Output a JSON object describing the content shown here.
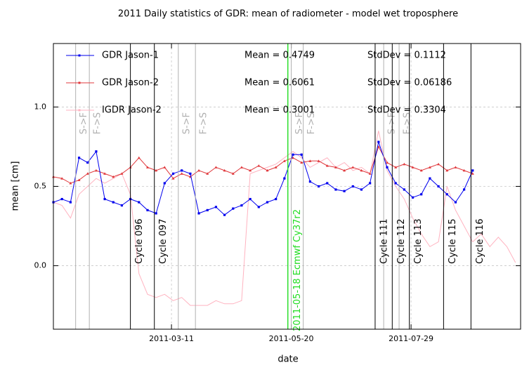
{
  "chart_data": {
    "type": "line",
    "title": "2011 Daily statistics of GDR: mean of radiometer - model wet troposphere",
    "xlabel": "date",
    "ylabel": "mean [cm]",
    "x": [
      "2011-01-01",
      "2011-01-06",
      "2011-01-11",
      "2011-01-16",
      "2011-01-21",
      "2011-01-26",
      "2011-01-31",
      "2011-02-05",
      "2011-02-10",
      "2011-02-15",
      "2011-02-20",
      "2011-02-25",
      "2011-03-02",
      "2011-03-07",
      "2011-03-12",
      "2011-03-17",
      "2011-03-22",
      "2011-03-27",
      "2011-04-01",
      "2011-04-06",
      "2011-04-11",
      "2011-04-16",
      "2011-04-21",
      "2011-04-26",
      "2011-05-01",
      "2011-05-06",
      "2011-05-11",
      "2011-05-16",
      "2011-05-21",
      "2011-05-26",
      "2011-05-31",
      "2011-06-05",
      "2011-06-10",
      "2011-06-15",
      "2011-06-20",
      "2011-06-25",
      "2011-06-30",
      "2011-07-05",
      "2011-07-10",
      "2011-07-15",
      "2011-07-20",
      "2011-07-25",
      "2011-07-30",
      "2011-08-04",
      "2011-08-09",
      "2011-08-14",
      "2011-08-19",
      "2011-08-24",
      "2011-08-29",
      "2011-09-03",
      "2011-09-08",
      "2011-09-13",
      "2011-09-18",
      "2011-09-23",
      "2011-09-28"
    ],
    "series": [
      {
        "name": "GDR Jason-1",
        "color": "#0000ee",
        "mean_label": "Mean = 0.4749",
        "std_label": "StdDev = 0.1112",
        "values": [
          0.4,
          0.42,
          0.4,
          0.68,
          0.65,
          0.72,
          0.42,
          0.4,
          0.38,
          0.42,
          0.4,
          0.35,
          0.33,
          0.52,
          0.58,
          0.6,
          0.58,
          0.33,
          0.35,
          0.37,
          0.32,
          0.36,
          0.38,
          0.42,
          0.37,
          0.4,
          0.42,
          0.55,
          0.7,
          0.7,
          0.53,
          0.5,
          0.52,
          0.48,
          0.47,
          0.5,
          0.48,
          0.52,
          0.78,
          0.62,
          0.52,
          0.48,
          0.43,
          0.45,
          0.55,
          0.5,
          0.45,
          0.4,
          0.48,
          0.6,
          null,
          null,
          null,
          null,
          null
        ]
      },
      {
        "name": "GDR Jason-2",
        "color": "#e0383c",
        "mean_label": "Mean = 0.6061",
        "std_label": "StdDev = 0.06186",
        "values": [
          0.56,
          0.55,
          0.52,
          0.54,
          0.58,
          0.6,
          0.58,
          0.56,
          0.58,
          0.62,
          0.68,
          0.62,
          0.6,
          0.62,
          0.55,
          0.58,
          0.56,
          0.6,
          0.58,
          0.62,
          0.6,
          0.58,
          0.62,
          0.6,
          0.63,
          0.6,
          0.62,
          0.66,
          0.68,
          0.65,
          0.66,
          0.66,
          0.63,
          0.62,
          0.6,
          0.62,
          0.6,
          0.58,
          0.75,
          0.65,
          0.62,
          0.64,
          0.62,
          0.6,
          0.62,
          0.64,
          0.6,
          0.62,
          0.6,
          0.58,
          null,
          null,
          null,
          null,
          null
        ]
      },
      {
        "name": "IGDR Jason-2",
        "color": "#ffb3c0",
        "mean_label": "Mean = 0.3001",
        "std_label": "StdDev = 0.3304",
        "values": [
          0.4,
          0.38,
          0.3,
          0.45,
          0.5,
          0.55,
          0.52,
          0.55,
          0.58,
          0.45,
          -0.05,
          -0.18,
          -0.2,
          -0.18,
          -0.22,
          -0.2,
          -0.25,
          -0.25,
          -0.25,
          -0.22,
          -0.24,
          -0.24,
          -0.22,
          0.58,
          0.6,
          0.62,
          0.64,
          0.68,
          0.72,
          0.68,
          0.62,
          0.65,
          0.68,
          0.62,
          0.65,
          0.6,
          0.62,
          0.58,
          0.85,
          0.6,
          0.5,
          0.42,
          0.3,
          0.2,
          0.12,
          0.15,
          0.5,
          0.35,
          0.25,
          0.15,
          0.2,
          0.12,
          0.18,
          0.12,
          0.02
        ]
      }
    ],
    "xlim": [
      "2011-01-01",
      "2011-10-01"
    ],
    "xticks": [
      "2011-03-11",
      "2011-05-20",
      "2011-07-29"
    ],
    "ylim": [
      -0.4,
      1.4
    ],
    "yticks": [
      {
        "value": 0,
        "label": "0.0"
      },
      {
        "value": 0.5,
        "label": "0.5"
      },
      {
        "value": 1,
        "label": "1.0"
      }
    ],
    "grid": true,
    "mode_switches": {
      "color": "#b0b0b0",
      "lines": [
        {
          "x": "2011-01-14",
          "label": "S->F"
        },
        {
          "x": "2011-01-22",
          "label": "F->S"
        },
        {
          "x": "2011-03-15",
          "label": "S->F"
        },
        {
          "x": "2011-03-25",
          "label": "F->S"
        },
        {
          "x": "2011-05-20",
          "label": "S->F"
        },
        {
          "x": "2011-05-27",
          "label": "F->S"
        },
        {
          "x": "2011-07-13",
          "label": "S->F"
        },
        {
          "x": "2011-07-22",
          "label": "F->S"
        }
      ]
    },
    "cycle_lines": {
      "color": "#000000",
      "lines": [
        {
          "x": "2011-02-15",
          "label": "Cycle 096"
        },
        {
          "x": "2011-03-01",
          "label": "Cycle 097"
        },
        {
          "x": "2011-07-08",
          "label": "Cycle 111"
        },
        {
          "x": "2011-07-18",
          "label": "Cycle 112"
        },
        {
          "x": "2011-07-28",
          "label": "Cycle 113"
        },
        {
          "x": "2011-08-17",
          "label": "Cycle 115"
        },
        {
          "x": "2011-09-02",
          "label": "Cycle 116"
        }
      ]
    },
    "model_change": {
      "color": "#22dd22",
      "lines": [
        {
          "x": "2011-05-18",
          "label": "2011-05-18 Ecmwf Cy37r2"
        }
      ]
    }
  }
}
